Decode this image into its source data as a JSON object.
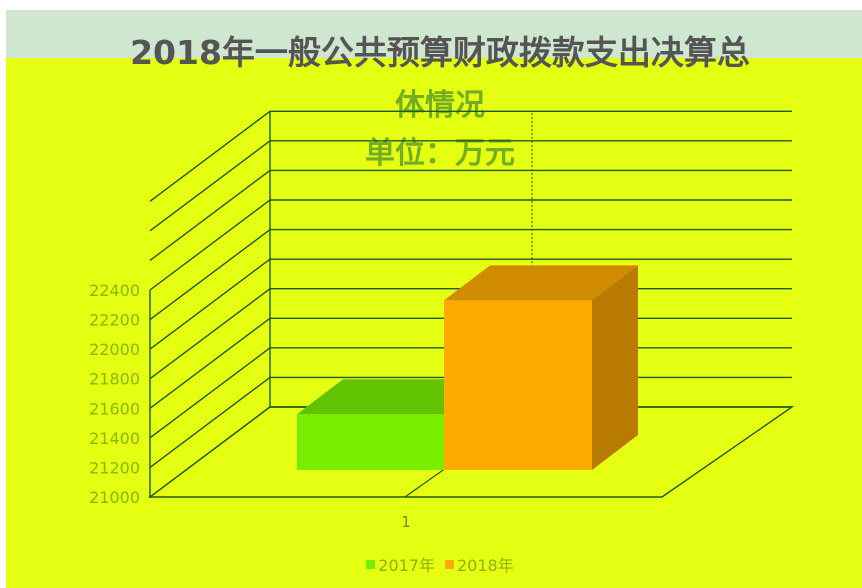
{
  "title": {
    "line1": "2018年一般公共预算财政拨款支出决算总",
    "line2": "体情况",
    "line3": "单位：万元"
  },
  "colors": {
    "background": "#e5ff12",
    "title_band": "#cfe6cf",
    "gridline": "#1f5a1f",
    "series_2017": "#77ee00",
    "series_2018": "#ffaa00"
  },
  "chart_data": {
    "type": "bar",
    "chart_style": "3d-clustered-column",
    "title": "2018年一般公共预算财政拨款支出决算总体情况 单位：万元",
    "categories": [
      "1"
    ],
    "series": [
      {
        "name": "2017年",
        "values": [
          21560
        ]
      },
      {
        "name": "2018年",
        "values": [
          22330
        ]
      }
    ],
    "yticks": [
      21000,
      21200,
      21400,
      21600,
      21800,
      22000,
      22200,
      22400
    ],
    "ylim": [
      21000,
      22400
    ],
    "grid": true,
    "legend": "bottom",
    "xlabel": "",
    "ylabel": ""
  }
}
